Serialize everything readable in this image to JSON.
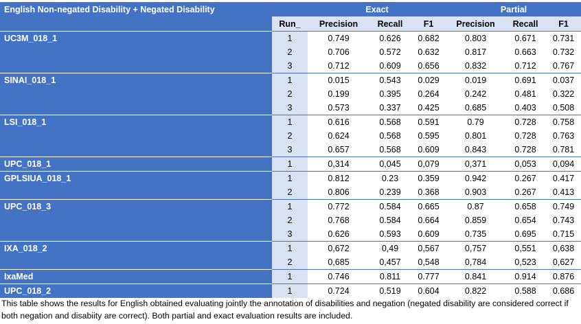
{
  "header": {
    "title": "English Non-negated Disability  + Negated Disability",
    "exact": "Exact",
    "partial": "Partial"
  },
  "columns": [
    "Run_",
    "Precision",
    "Recall",
    "F1",
    "Precision",
    "Recall",
    "F1"
  ],
  "groups": [
    {
      "system": "UC3M_018_1",
      "rows": [
        [
          "1",
          "0.749",
          "0.626",
          "0.682",
          "0.803",
          "0.671",
          "0.731"
        ],
        [
          "2",
          "0.706",
          "0.572",
          "0.632",
          "0.817",
          "0.663",
          "0.732"
        ],
        [
          "3",
          "0.712",
          "0.609",
          "0.656",
          "0.832",
          "0.712",
          "0.767"
        ]
      ]
    },
    {
      "system": "SINAI_018_1",
      "rows": [
        [
          "1",
          "0.015",
          "0.543",
          "0.029",
          "0.019",
          "0.691",
          "0.037"
        ],
        [
          "2",
          "0.199",
          "0.395",
          "0.264",
          "0.242",
          "0.481",
          "0.322"
        ],
        [
          "3",
          "0.573",
          "0.337",
          "0.425",
          "0.685",
          "0.403",
          "0.508"
        ]
      ]
    },
    {
      "system": "LSI_018_1",
      "rows": [
        [
          "1",
          "0.616",
          "0.568",
          "0.591",
          "0.79",
          "0.728",
          "0.758"
        ],
        [
          "2",
          "0.624",
          "0.568",
          "0.595",
          "0.801",
          "0.728",
          "0.763"
        ],
        [
          "3",
          "0.657",
          "0.568",
          "0.609",
          "0.843",
          "0.728",
          "0.781"
        ]
      ]
    },
    {
      "system": "UPC_018_1",
      "rows": [
        [
          "1",
          "0,314",
          "0,045",
          "0,079",
          "0,371",
          "0,053",
          "0,094"
        ]
      ]
    },
    {
      "system": "GPLSIUA_018_1",
      "rows": [
        [
          "1",
          "0.812",
          "0.23",
          "0.359",
          "0.942",
          "0.267",
          "0.417"
        ],
        [
          "2",
          "0.806",
          "0.239",
          "0.368",
          "0.903",
          "0.267",
          "0.413"
        ]
      ]
    },
    {
      "system": "UPC_018_3",
      "rows": [
        [
          "1",
          "0.772",
          "0.584",
          "0.665",
          "0.87",
          "0.658",
          "0.749"
        ],
        [
          "2",
          "0.768",
          "0.584",
          "0.664",
          "0.859",
          "0.654",
          "0.743"
        ],
        [
          "3",
          "0.626",
          "0.593",
          "0.609",
          "0.735",
          "0.695",
          "0.715"
        ]
      ]
    },
    {
      "system": "IXA_018_2",
      "rows": [
        [
          "1",
          "0,672",
          "0,49",
          "0,567",
          "0,757",
          "0,551",
          "0,638"
        ],
        [
          "2",
          "0,685",
          "0,457",
          "0,548",
          "0,784",
          "0,523",
          "0,627"
        ]
      ]
    },
    {
      "system": "IxaMed",
      "rows": [
        [
          "1",
          "0.746",
          "0.811",
          "0.777",
          "0.841",
          "0.914",
          "0.876"
        ]
      ]
    },
    {
      "system": "UPC_018_2",
      "rows": [
        [
          "1",
          "0.724",
          "0.519",
          "0.604",
          "0.822",
          "0.588",
          "0.686"
        ]
      ]
    }
  ],
  "caption": "This table shows the results for English obtained evaluating jointly the annotation of disabilities and negation (negated disability are considered correct if both negation and disabiity are correct). Both partial and exact evaluation results are included."
}
